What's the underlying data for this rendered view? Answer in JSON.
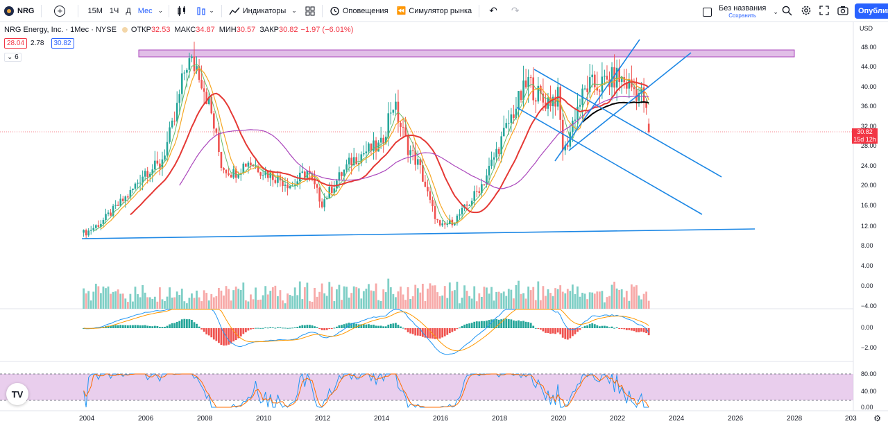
{
  "toolbar": {
    "symbol": "NRG",
    "timeframes": [
      "15M",
      "1Ч",
      "Д",
      "Мес"
    ],
    "active_timeframe": "Мес",
    "indicators_label": "Индикаторы",
    "alerts_label": "Оповещения",
    "replay_label": "Симулятор рынка",
    "layout_title": "Без названия",
    "layout_save_label": "Сохранить",
    "publish_label": "Опублик"
  },
  "legend": {
    "title": "NRG Energy, Inc. · 1Мес · NYSE",
    "open_label": "ОТКР",
    "open": "32.53",
    "high_label": "МАКС",
    "high": "34.87",
    "low_label": "МИН",
    "low": "30.57",
    "close_label": "ЗАКР",
    "close": "30.82",
    "change": "−1.97 (−6.01%)",
    "bid": "28.04",
    "spread": "2.78",
    "ask": "30.82",
    "indicator_count": "6"
  },
  "price_axis": {
    "currency": "USD",
    "ticks": [
      "48.00",
      "44.00",
      "40.00",
      "36.00",
      "32.00",
      "28.00",
      "24.00",
      "20.00",
      "16.00",
      "12.00",
      "8.00"
    ],
    "current_price": "30.82",
    "countdown": "15d 12h"
  },
  "volume_axis": {
    "ticks": [
      "4.00",
      "0.00",
      "−4.00"
    ]
  },
  "macd_axis": {
    "ticks": [
      "0.00",
      "−2.00"
    ]
  },
  "rsi_axis": {
    "ticks": [
      "80.00",
      "40.00",
      "0.00"
    ]
  },
  "time_axis": {
    "ticks": [
      "2004",
      "2006",
      "2008",
      "2010",
      "2012",
      "2014",
      "2016",
      "2018",
      "2020",
      "2022",
      "2024",
      "2026",
      "2028",
      "203"
    ]
  },
  "colors": {
    "up": "#26a69a",
    "down": "#ef5350",
    "accent": "#2962ff",
    "ma_red": "#e53935",
    "ma_purple": "#ab47bc",
    "ma_orange": "#f5a623",
    "trend_blue": "#1e88e5",
    "resistance_zone": "#e1bee7"
  },
  "chart_data": {
    "type": "candlestick",
    "symbol": "NRG",
    "interval": "1M",
    "x_range": [
      "2003-12",
      "2023-03"
    ],
    "ylim": [
      8,
      50
    ],
    "closes": [
      {
        "x": "2004.0",
        "y": 10.5
      },
      {
        "x": "2004.5",
        "y": 12.5
      },
      {
        "x": "2005.0",
        "y": 15.5
      },
      {
        "x": "2005.5",
        "y": 18.5
      },
      {
        "x": "2006.0",
        "y": 23.0
      },
      {
        "x": "2006.5",
        "y": 24.0
      },
      {
        "x": "2007.0",
        "y": 33.0
      },
      {
        "x": "2007.4",
        "y": 45.0
      },
      {
        "x": "2007.8",
        "y": 44.0
      },
      {
        "x": "2008.2",
        "y": 36.0
      },
      {
        "x": "2008.6",
        "y": 24.0
      },
      {
        "x": "2009.0",
        "y": 22.5
      },
      {
        "x": "2009.5",
        "y": 25.0
      },
      {
        "x": "2010.0",
        "y": 23.0
      },
      {
        "x": "2010.5",
        "y": 21.5
      },
      {
        "x": "2011.0",
        "y": 20.0
      },
      {
        "x": "2011.5",
        "y": 23.0
      },
      {
        "x": "2012.0",
        "y": 16.5
      },
      {
        "x": "2012.5",
        "y": 21.0
      },
      {
        "x": "2013.0",
        "y": 25.0
      },
      {
        "x": "2013.5",
        "y": 27.0
      },
      {
        "x": "2014.0",
        "y": 28.0
      },
      {
        "x": "2014.4",
        "y": 37.0
      },
      {
        "x": "2014.9",
        "y": 28.0
      },
      {
        "x": "2015.3",
        "y": 24.0
      },
      {
        "x": "2015.7",
        "y": 16.0
      },
      {
        "x": "2016.0",
        "y": 11.5
      },
      {
        "x": "2016.5",
        "y": 13.0
      },
      {
        "x": "2017.0",
        "y": 16.5
      },
      {
        "x": "2017.5",
        "y": 21.0
      },
      {
        "x": "2018.0",
        "y": 28.0
      },
      {
        "x": "2018.5",
        "y": 35.0
      },
      {
        "x": "2019.0",
        "y": 41.0
      },
      {
        "x": "2019.5",
        "y": 37.0
      },
      {
        "x": "2020.0",
        "y": 38.0
      },
      {
        "x": "2020.2",
        "y": 26.0
      },
      {
        "x": "2020.6",
        "y": 35.0
      },
      {
        "x": "2021.0",
        "y": 40.0
      },
      {
        "x": "2021.5",
        "y": 40.5
      },
      {
        "x": "2022.0",
        "y": 42.0
      },
      {
        "x": "2022.5",
        "y": 40.0
      },
      {
        "x": "2022.9",
        "y": 38.0
      },
      {
        "x": "2023.1",
        "y": 30.82
      }
    ],
    "resistance_zone": [
      46,
      47.3
    ],
    "last": {
      "open": 32.53,
      "high": 34.87,
      "low": 30.57,
      "close": 30.82
    }
  }
}
